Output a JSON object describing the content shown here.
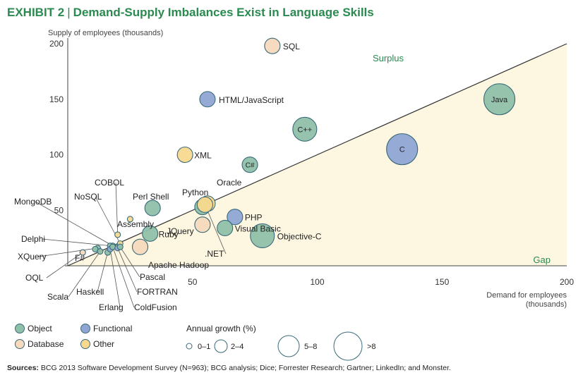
{
  "header": {
    "exhibit": "EXHIBIT 2",
    "title": "Demand-Supply Imbalances Exist in Language Skills"
  },
  "sources": {
    "label": "Sources:",
    "text": "BCG 2013 Software Development Survey (N=963); BCG analysis; Dice; Forrester Research; Gartner; LinkedIn; and Monster."
  },
  "colors": {
    "Object": "#8fc0a9",
    "Functional": "#8fa6d4",
    "Database": "#f7d9bd",
    "Other": "#f8d98e",
    "gap_fill": "#fdf6e0",
    "accent": "#2a8a4f"
  },
  "chart_data": {
    "type": "scatter",
    "xlabel": "Demand for employees (thousands)",
    "ylabel": "Supply of employees (thousands)",
    "xlim": [
      0,
      200
    ],
    "ylim": [
      0,
      200
    ],
    "xticks": [
      50,
      100,
      150,
      200
    ],
    "yticks": [
      50,
      100,
      150,
      200
    ],
    "region_labels": {
      "surplus": "Surplus",
      "gap": "Gap"
    },
    "parity_line": [
      [
        0,
        0
      ],
      [
        200,
        200
      ]
    ],
    "legend_category_title": "",
    "legend_size_title": "Annual growth (%)",
    "size_classes": [
      "0–1",
      "2–4",
      "5–8",
      ">8"
    ],
    "categories": [
      "Object",
      "Functional",
      "Database",
      "Other"
    ],
    "points": [
      {
        "name": "SQL",
        "x": 82,
        "y": 198,
        "category": "Database",
        "size": 1
      },
      {
        "name": "Java",
        "x": 173,
        "y": 150,
        "category": "Object",
        "size": 3
      },
      {
        "name": "HTML/JavaScript",
        "x": 56,
        "y": 150,
        "category": "Functional",
        "size": 1
      },
      {
        "name": "C++",
        "x": 95,
        "y": 123,
        "category": "Object",
        "size": 2
      },
      {
        "name": "C",
        "x": 134,
        "y": 105,
        "category": "Functional",
        "size": 3
      },
      {
        "name": "XML",
        "x": 47,
        "y": 100,
        "category": "Other",
        "size": 1
      },
      {
        "name": "C#",
        "x": 73,
        "y": 91,
        "category": "Object",
        "size": 1
      },
      {
        "name": "Oracle",
        "x": 56,
        "y": 56,
        "category": "Other",
        "size": 1
      },
      {
        "name": "Python",
        "x": 54,
        "y": 53,
        "category": "Object",
        "size": 1
      },
      {
        "name": "Perl Shell",
        "x": 34,
        "y": 52,
        "category": "Object",
        "size": 1
      },
      {
        "name": "PHP",
        "x": 67,
        "y": 44,
        "category": "Functional",
        "size": 1
      },
      {
        "name": "JQuery",
        "x": 54,
        "y": 37,
        "category": "Database",
        "size": 1
      },
      {
        "name": "Visual Basic",
        "x": 63,
        "y": 34,
        "category": "Object",
        "size": 1
      },
      {
        "name": "Objective-C",
        "x": 78,
        "y": 27,
        "category": "Object",
        "size": 2
      },
      {
        "name": "Ruby",
        "x": 33,
        "y": 29,
        "category": "Object",
        "size": 1
      },
      {
        "name": "Apache Hadoop",
        "x": 29,
        "y": 17,
        "category": "Database",
        "size": 1
      },
      {
        "name": "Assembly",
        "x": 25,
        "y": 42,
        "category": "Other",
        "size": 0
      },
      {
        "name": ".NET",
        "x": 55,
        "y": 55,
        "category": "Other",
        "size": 1
      },
      {
        "name": "COBOL",
        "x": 20,
        "y": 28,
        "category": "Other",
        "size": 0
      },
      {
        "name": "NoSQL",
        "x": 21,
        "y": 20,
        "category": "Other",
        "size": 0
      },
      {
        "name": "MongoDB",
        "x": 18,
        "y": 18,
        "category": "Other",
        "size": 0
      },
      {
        "name": "Delphi",
        "x": 17,
        "y": 18,
        "category": "Object",
        "size": 0
      },
      {
        "name": "XQuery",
        "x": 12,
        "y": 16,
        "category": "Object",
        "size": 0
      },
      {
        "name": "F#",
        "x": 11,
        "y": 15,
        "category": "Object",
        "size": 0
      },
      {
        "name": "OQL",
        "x": 6,
        "y": 12,
        "category": "Database",
        "size": 0
      },
      {
        "name": "Scala",
        "x": 13,
        "y": 13,
        "category": "Object",
        "size": 0
      },
      {
        "name": "Haskell",
        "x": 16,
        "y": 12,
        "category": "Object",
        "size": 0
      },
      {
        "name": "Erlang",
        "x": 17,
        "y": 15,
        "category": "Functional",
        "size": 0
      },
      {
        "name": "ColdFusion",
        "x": 18,
        "y": 17,
        "category": "Object",
        "size": 0
      },
      {
        "name": "FORTRAN",
        "x": 20,
        "y": 16,
        "category": "Functional",
        "size": 0
      },
      {
        "name": "Pascal",
        "x": 21,
        "y": 17,
        "category": "Object",
        "size": 0
      }
    ]
  }
}
